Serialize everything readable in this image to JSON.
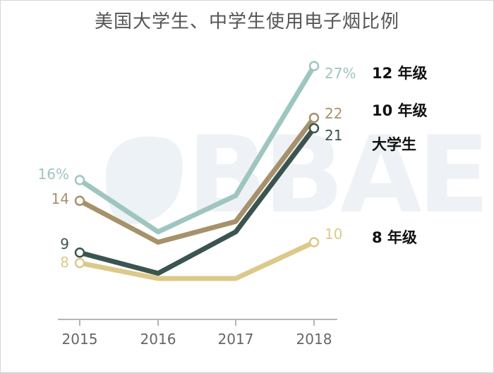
{
  "chart_data": {
    "type": "line",
    "title": "美国大学生、中学生使用电子烟比例",
    "xlabel": "",
    "ylabel": "",
    "categories": [
      "2015",
      "2016",
      "2017",
      "2018"
    ],
    "ylim": [
      0,
      30
    ],
    "grid": false,
    "legend": "inline-right",
    "series": [
      {
        "name": "12 年级",
        "color": "#9fc5c0",
        "values": [
          16,
          11,
          14.5,
          27
        ],
        "start_label": "16%",
        "end_label": "27%"
      },
      {
        "name": "10 年级",
        "color": "#a6916a",
        "values": [
          14,
          10,
          12,
          22
        ],
        "start_label": "14",
        "end_label": "22"
      },
      {
        "name": "大学生",
        "color": "#3c5450",
        "values": [
          9,
          7,
          11,
          21
        ],
        "start_label": "9",
        "end_label": "21"
      },
      {
        "name": "8 年级",
        "color": "#dcc98a",
        "values": [
          8,
          6.5,
          6.5,
          10
        ],
        "start_label": "8",
        "end_label": "10"
      }
    ],
    "watermark": "BBAE"
  }
}
